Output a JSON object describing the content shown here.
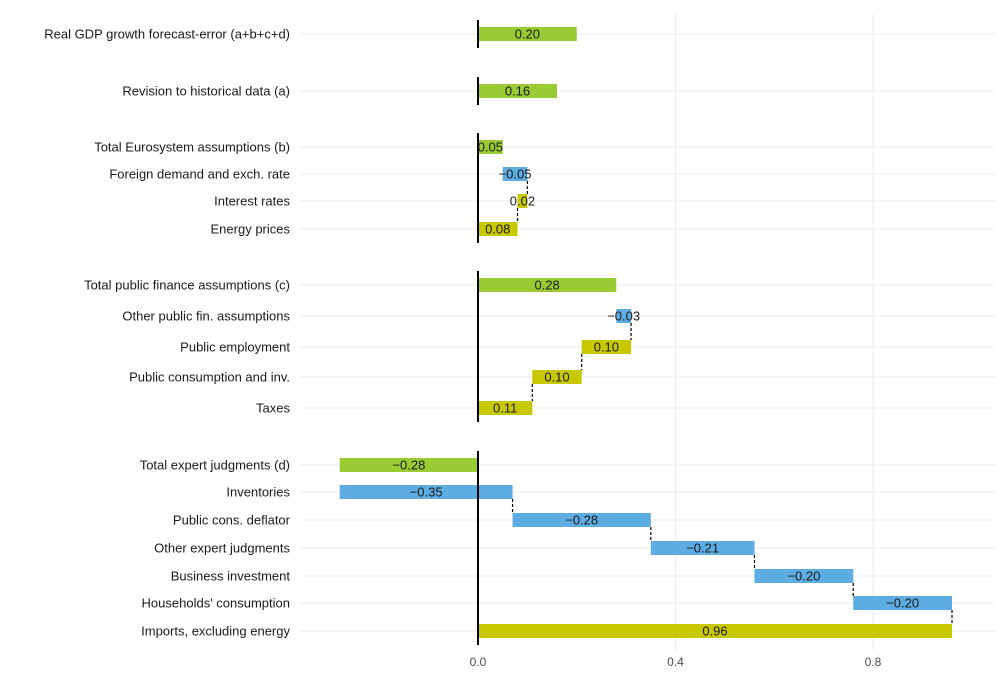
{
  "chart_data": {
    "type": "bar",
    "subtype": "horizontal-waterfall",
    "title": "",
    "xlabel": "",
    "ylabel": "",
    "xlim": [
      -0.28,
      1.05
    ],
    "x_ticks": [
      0.0,
      0.4,
      0.8
    ],
    "x_tick_labels": [
      "0.0",
      "0.4",
      "0.8"
    ],
    "grid": true,
    "legend": "none",
    "colors": {
      "total": "#99cc33",
      "negative": "#5dade2",
      "positive": "#c8c800",
      "zero_line": "#000000",
      "gridline": "#ebebeb"
    },
    "groups": [
      {
        "rows": [
          {
            "label": "Real GDP growth forecast-error (a+b+c+d)",
            "value": 0.2,
            "value_label": "0.20",
            "start": 0.0,
            "end": 0.2,
            "kind": "total"
          }
        ]
      },
      {
        "rows": [
          {
            "label": "Revision to historical data (a)",
            "value": 0.16,
            "value_label": "0.16",
            "start": 0.0,
            "end": 0.16,
            "kind": "total"
          }
        ]
      },
      {
        "rows": [
          {
            "label": "Total Eurosystem assumptions (b)",
            "value": 0.05,
            "value_label": "0.05",
            "start": 0.0,
            "end": 0.05,
            "kind": "total"
          },
          {
            "label": "Foreign demand and exch. rate",
            "value": -0.05,
            "value_label": "−0.05",
            "start": 0.1,
            "end": 0.05,
            "kind": "negative"
          },
          {
            "label": "Interest rates",
            "value": 0.02,
            "value_label": "0.02",
            "start": 0.08,
            "end": 0.1,
            "kind": "positive"
          },
          {
            "label": "Energy prices",
            "value": 0.08,
            "value_label": "0.08",
            "start": 0.0,
            "end": 0.08,
            "kind": "positive"
          }
        ]
      },
      {
        "rows": [
          {
            "label": "Total public finance assumptions (c)",
            "value": 0.28,
            "value_label": "0.28",
            "start": 0.0,
            "end": 0.28,
            "kind": "total"
          },
          {
            "label": "Other public fin. assumptions",
            "value": -0.03,
            "value_label": "−0.03",
            "start": 0.31,
            "end": 0.28,
            "kind": "negative"
          },
          {
            "label": "Public employment",
            "value": 0.1,
            "value_label": "0.10",
            "start": 0.21,
            "end": 0.31,
            "kind": "positive"
          },
          {
            "label": "Public consumption and inv.",
            "value": 0.1,
            "value_label": "0.10",
            "start": 0.11,
            "end": 0.21,
            "kind": "positive"
          },
          {
            "label": "Taxes",
            "value": 0.11,
            "value_label": "0.11",
            "start": 0.0,
            "end": 0.11,
            "kind": "positive"
          }
        ]
      },
      {
        "rows": [
          {
            "label": "Total expert judgments (d)",
            "value": -0.28,
            "value_label": "−0.28",
            "start": 0.0,
            "end": -0.28,
            "kind": "total"
          },
          {
            "label": "Inventories",
            "value": -0.35,
            "value_label": "−0.35",
            "start": 0.07,
            "end": -0.28,
            "kind": "negative"
          },
          {
            "label": "Public cons. deflator",
            "value": -0.28,
            "value_label": "−0.28",
            "start": 0.35,
            "end": 0.07,
            "kind": "negative"
          },
          {
            "label": "Other expert judgments",
            "value": -0.21,
            "value_label": "−0.21",
            "start": 0.56,
            "end": 0.35,
            "kind": "negative"
          },
          {
            "label": "Business investment",
            "value": -0.2,
            "value_label": "−0.20",
            "start": 0.76,
            "end": 0.56,
            "kind": "negative"
          },
          {
            "label": "Households' consumption",
            "value": -0.2,
            "value_label": "−0.20",
            "start": 0.96,
            "end": 0.76,
            "kind": "negative"
          },
          {
            "label": "Imports, excluding energy",
            "value": 0.96,
            "value_label": "0.96",
            "start": 0.0,
            "end": 0.96,
            "kind": "positive"
          }
        ]
      }
    ]
  }
}
